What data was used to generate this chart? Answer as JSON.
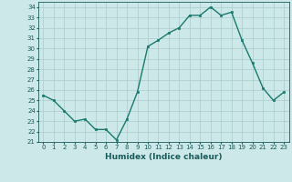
{
  "x": [
    0,
    1,
    2,
    3,
    4,
    5,
    6,
    7,
    8,
    9,
    10,
    11,
    12,
    13,
    14,
    15,
    16,
    17,
    18,
    19,
    20,
    21,
    22,
    23
  ],
  "y": [
    25.5,
    25.0,
    24.0,
    23.0,
    23.2,
    22.2,
    22.2,
    21.2,
    23.2,
    25.8,
    30.2,
    30.8,
    31.5,
    32.0,
    33.2,
    33.2,
    34.0,
    33.2,
    33.5,
    30.8,
    28.6,
    26.2,
    25.0,
    25.8
  ],
  "ylim": [
    21,
    34.5
  ],
  "yticks": [
    21,
    22,
    23,
    24,
    25,
    26,
    27,
    28,
    29,
    30,
    31,
    32,
    33,
    34
  ],
  "xlim": [
    -0.5,
    23.5
  ],
  "xticks": [
    0,
    1,
    2,
    3,
    4,
    5,
    6,
    7,
    8,
    9,
    10,
    11,
    12,
    13,
    14,
    15,
    16,
    17,
    18,
    19,
    20,
    21,
    22,
    23
  ],
  "xlabel": "Humidex (Indice chaleur)",
  "line_color": "#1a7a6e",
  "marker": "s",
  "marker_size": 2,
  "bg_color": "#cce8e8",
  "grid_color": "#aacccc",
  "text_color": "#1a5a5a",
  "line_width": 1.0,
  "tick_fontsize": 5.0,
  "xlabel_fontsize": 6.5
}
